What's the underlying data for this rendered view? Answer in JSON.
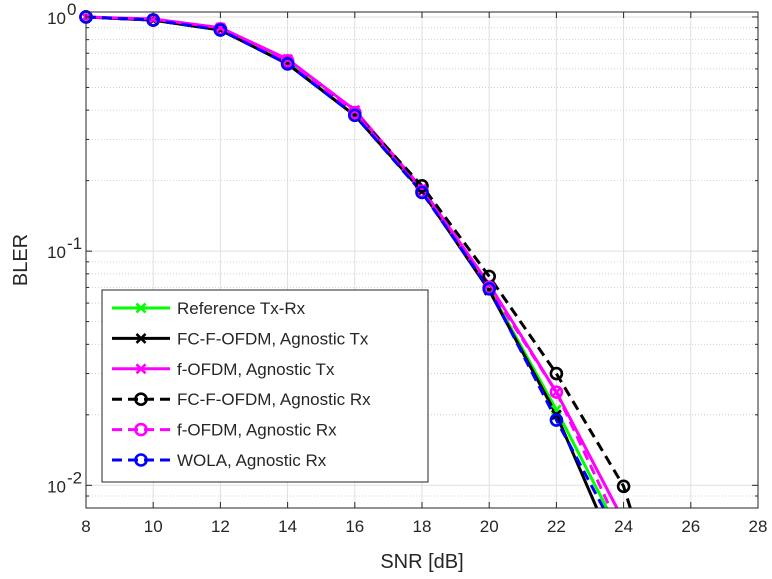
{
  "chart_data": {
    "type": "line",
    "xlabel": "SNR [dB]",
    "ylabel": "BLER",
    "xlim": [
      8,
      28
    ],
    "ylim": [
      0.008,
      1.05
    ],
    "yscale": "log",
    "grid": true,
    "legend_position": "bottom-left",
    "x_ticks": [
      "8",
      "10",
      "12",
      "14",
      "16",
      "18",
      "20",
      "22",
      "24",
      "26",
      "28"
    ],
    "y_ticks": [
      {
        "base": "10",
        "exp": "0",
        "value": 1
      },
      {
        "base": "10",
        "exp": "-1",
        "value": 0.1
      },
      {
        "base": "10",
        "exp": "-2",
        "value": 0.01
      }
    ],
    "series": [
      {
        "name": "Reference Tx-Rx",
        "color": "#00ff00",
        "dash": "solid",
        "marker": "x",
        "x": [
          8,
          10,
          12,
          14,
          16,
          18,
          20,
          22,
          23.5
        ],
        "y": [
          1.0,
          0.97,
          0.88,
          0.64,
          0.38,
          0.18,
          0.069,
          0.021,
          0.008
        ],
        "marker_x": [
          8,
          10,
          12,
          14,
          16,
          18,
          20,
          22
        ],
        "marker_y": [
          1.0,
          0.97,
          0.88,
          0.64,
          0.38,
          0.18,
          0.069,
          0.021
        ]
      },
      {
        "name": "FC-F-OFDM, Agnostic Tx",
        "color": "#000000",
        "dash": "solid",
        "marker": "x",
        "x": [
          8,
          10,
          12,
          14,
          16,
          18,
          20,
          22,
          23.2
        ],
        "y": [
          1.0,
          0.97,
          0.88,
          0.63,
          0.38,
          0.18,
          0.068,
          0.02,
          0.008
        ],
        "marker_x": [
          8,
          10,
          12,
          14,
          16,
          18,
          20,
          22
        ],
        "marker_y": [
          1.0,
          0.97,
          0.88,
          0.63,
          0.38,
          0.18,
          0.068,
          0.02
        ]
      },
      {
        "name": "f-OFDM, Agnostic Tx",
        "color": "#ff00ff",
        "dash": "solid",
        "marker": "x",
        "x": [
          8,
          10,
          12,
          14,
          16,
          18,
          20,
          22,
          23.8
        ],
        "y": [
          1.0,
          0.98,
          0.9,
          0.66,
          0.4,
          0.185,
          0.072,
          0.025,
          0.008
        ],
        "marker_x": [
          8,
          10,
          12,
          14,
          16,
          18,
          20,
          22
        ],
        "marker_y": [
          1.0,
          0.98,
          0.9,
          0.66,
          0.4,
          0.185,
          0.072,
          0.025
        ]
      },
      {
        "name": "FC-F-OFDM, Agnostic Rx",
        "color": "#000000",
        "dash": "dashed",
        "marker": "o",
        "x": [
          8,
          10,
          12,
          14,
          16,
          18,
          20,
          22,
          24,
          24.2
        ],
        "y": [
          1.0,
          0.97,
          0.88,
          0.64,
          0.39,
          0.19,
          0.078,
          0.03,
          0.0099,
          0.008
        ],
        "marker_x": [
          8,
          10,
          12,
          14,
          16,
          18,
          20,
          22,
          24
        ],
        "marker_y": [
          1.0,
          0.97,
          0.88,
          0.64,
          0.39,
          0.19,
          0.078,
          0.03,
          0.0099
        ]
      },
      {
        "name": "f-OFDM, Agnostic Rx",
        "color": "#ff00ff",
        "dash": "dashed",
        "marker": "o",
        "x": [
          8,
          10,
          12,
          14,
          16,
          18,
          20,
          22,
          23.6
        ],
        "y": [
          1.0,
          0.97,
          0.89,
          0.65,
          0.39,
          0.18,
          0.07,
          0.025,
          0.008
        ],
        "marker_x": [
          8,
          10,
          12,
          14,
          16,
          18,
          20,
          22
        ],
        "marker_y": [
          1.0,
          0.97,
          0.89,
          0.65,
          0.39,
          0.18,
          0.07,
          0.025
        ]
      },
      {
        "name": "WOLA, Agnostic Rx",
        "color": "#0000ff",
        "dash": "dashed",
        "marker": "o",
        "x": [
          8,
          10,
          12,
          14,
          16,
          18,
          20,
          22,
          23.4
        ],
        "y": [
          1.0,
          0.97,
          0.88,
          0.63,
          0.38,
          0.178,
          0.069,
          0.019,
          0.008
        ],
        "marker_x": [
          8,
          10,
          12,
          14,
          16,
          18,
          20,
          22
        ],
        "marker_y": [
          1.0,
          0.97,
          0.88,
          0.63,
          0.38,
          0.178,
          0.069,
          0.019
        ]
      }
    ]
  }
}
